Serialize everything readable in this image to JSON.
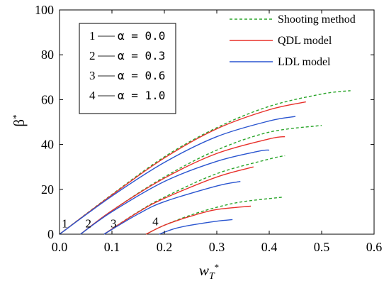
{
  "chart_data": {
    "type": "line",
    "xlabel": "w_T*",
    "ylabel": "β*",
    "xlim": [
      0.0,
      0.6
    ],
    "ylim": [
      0,
      100
    ],
    "xticks": [
      "0.0",
      "0.1",
      "0.2",
      "0.3",
      "0.4",
      "0.5",
      "0.6"
    ],
    "yticks": [
      "0",
      "20",
      "40",
      "60",
      "80",
      "100"
    ],
    "grid": false,
    "legend": {
      "position": "top-right",
      "entries": [
        {
          "label": "Shooting method",
          "color": "#2aa52a",
          "dash": "dashed"
        },
        {
          "label": "QDL model",
          "color": "#e8302a",
          "dash": "solid"
        },
        {
          "label": "LDL model",
          "color": "#2a55d0",
          "dash": "solid"
        }
      ]
    },
    "alpha_box": {
      "entries": [
        {
          "num": "1",
          "text": "α = 0.0"
        },
        {
          "num": "2",
          "text": "α = 0.3"
        },
        {
          "num": "3",
          "text": "α = 0.6"
        },
        {
          "num": "4",
          "text": "α = 1.0"
        }
      ]
    },
    "curve_labels": [
      {
        "text": "1",
        "x": 0.01,
        "y": 3
      },
      {
        "text": "2",
        "x": 0.055,
        "y": 3
      },
      {
        "text": "3",
        "x": 0.103,
        "y": 3
      },
      {
        "text": "4",
        "x": 0.183,
        "y": 4
      }
    ],
    "groups": [
      {
        "alpha": "0.0",
        "series": [
          {
            "name": "Shooting method",
            "x": [
              0.0,
              0.1,
              0.2,
              0.3,
              0.4,
              0.5,
              0.555
            ],
            "y": [
              0,
              17.7,
              34.5,
              47.5,
              57.0,
              62.5,
              64.0
            ]
          },
          {
            "name": "QDL model",
            "x": [
              0.0,
              0.1,
              0.2,
              0.3,
              0.4,
              0.47
            ],
            "y": [
              0,
              17.5,
              34.0,
              47.0,
              55.5,
              59.0
            ]
          },
          {
            "name": "LDL model",
            "x": [
              0.0,
              0.1,
              0.2,
              0.3,
              0.4,
              0.45
            ],
            "y": [
              0,
              17.0,
              32.0,
              43.5,
              50.5,
              52.5
            ]
          }
        ]
      },
      {
        "alpha": "0.3",
        "series": [
          {
            "name": "Shooting method",
            "x": [
              0.04,
              0.1,
              0.2,
              0.3,
              0.4,
              0.5
            ],
            "y": [
              0,
              10.5,
              25.5,
              37.5,
              45.5,
              48.5
            ]
          },
          {
            "name": "QDL model",
            "x": [
              0.04,
              0.1,
              0.2,
              0.3,
              0.4,
              0.43
            ],
            "y": [
              0,
              10.5,
              25.0,
              36.0,
              42.5,
              43.5
            ]
          },
          {
            "name": "LDL model",
            "x": [
              0.04,
              0.1,
              0.2,
              0.3,
              0.38,
              0.4
            ],
            "y": [
              0,
              10.0,
              23.5,
              32.5,
              37.0,
              37.5
            ]
          }
        ]
      },
      {
        "alpha": "0.6",
        "series": [
          {
            "name": "Shooting method",
            "x": [
              0.085,
              0.15,
              0.2,
              0.3,
              0.4,
              0.43
            ],
            "y": [
              0,
              10.0,
              16.5,
              27.0,
              33.5,
              35.0
            ]
          },
          {
            "name": "QDL model",
            "x": [
              0.085,
              0.15,
              0.2,
              0.3,
              0.37
            ],
            "y": [
              0,
              9.8,
              16.0,
              25.5,
              30.0
            ]
          },
          {
            "name": "LDL model",
            "x": [
              0.085,
              0.15,
              0.2,
              0.3,
              0.345
            ],
            "y": [
              0,
              9.0,
              14.5,
              21.5,
              23.5
            ]
          }
        ]
      },
      {
        "alpha": "1.0",
        "series": [
          {
            "name": "Shooting method",
            "x": [
              0.165,
              0.2,
              0.25,
              0.3,
              0.35,
              0.425
            ],
            "y": [
              0,
              4.0,
              8.5,
              12.0,
              14.5,
              16.5
            ]
          },
          {
            "name": "QDL model",
            "x": [
              0.165,
              0.2,
              0.25,
              0.3,
              0.365
            ],
            "y": [
              0,
              4.0,
              8.0,
              11.0,
              12.5
            ]
          },
          {
            "name": "LDL model",
            "x": [
              0.19,
              0.22,
              0.25,
              0.3,
              0.33
            ],
            "y": [
              0,
              2.5,
              4.0,
              5.8,
              6.5
            ]
          }
        ]
      }
    ]
  }
}
